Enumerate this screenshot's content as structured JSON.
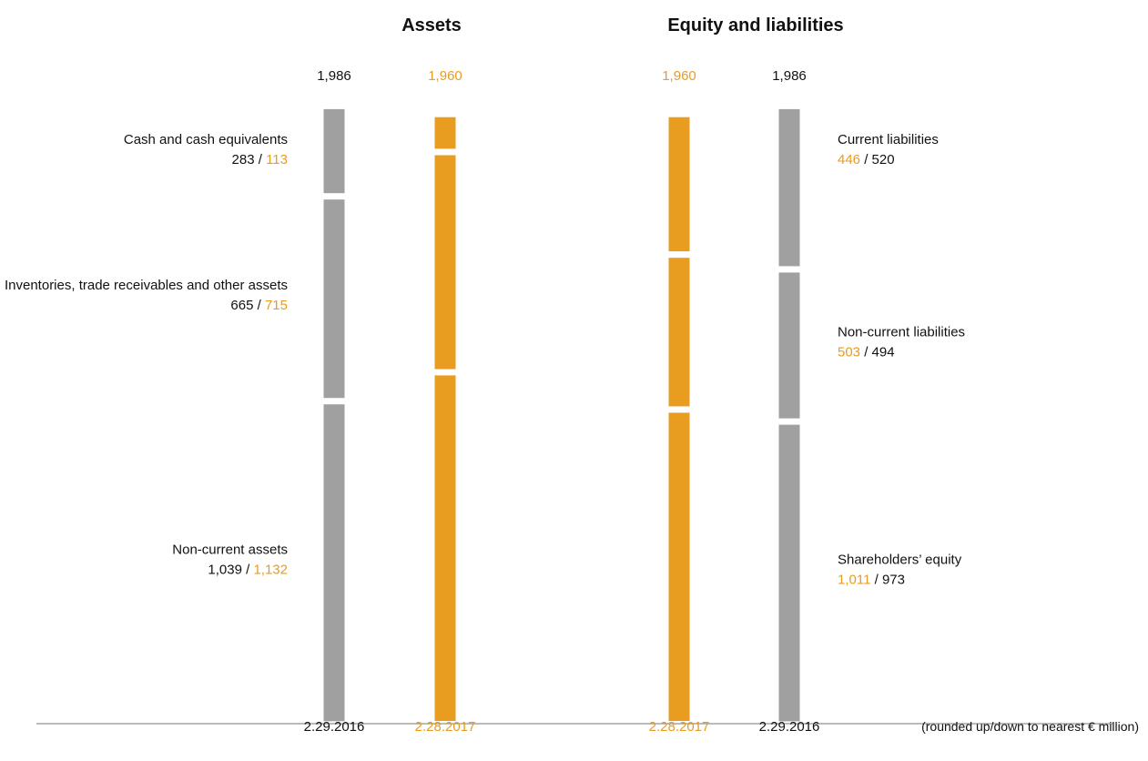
{
  "colors": {
    "previous": "#a0a0a0",
    "current": "#e89c20",
    "text": "#111111",
    "axis": "#777777"
  },
  "chart_data": {
    "type": "bar",
    "stacked": true,
    "unit_note": "(rounded up/down to nearest € million)",
    "panels": [
      {
        "title": "Assets",
        "columns": [
          {
            "date": "2.29.2016",
            "total_label": "1,986",
            "total": 1986,
            "period": "previous"
          },
          {
            "date": "2.28.2017",
            "total_label": "1,960",
            "total": 1960,
            "period": "current"
          }
        ],
        "segments": [
          {
            "name": "Cash and cash equivalents",
            "previous": 283,
            "current": 113,
            "previous_label": "283",
            "current_label": "113"
          },
          {
            "name": "Inventories, trade receivables and other assets",
            "previous": 665,
            "current": 715,
            "previous_label": "665",
            "current_label": "715"
          },
          {
            "name": "Non-current assets",
            "previous": 1039,
            "current": 1132,
            "previous_label": "1,039",
            "current_label": "1,132"
          }
        ]
      },
      {
        "title": "Equity and liabilities",
        "columns": [
          {
            "date": "2.28.2017",
            "total_label": "1,960",
            "total": 1960,
            "period": "current"
          },
          {
            "date": "2.29.2016",
            "total_label": "1,986",
            "total": 1986,
            "period": "previous"
          }
        ],
        "segments": [
          {
            "name": "Current liabilities",
            "previous": 520,
            "current": 446,
            "previous_label": "520",
            "current_label": "446"
          },
          {
            "name": "Non-current liabilities",
            "previous": 494,
            "current": 503,
            "previous_label": "494",
            "current_label": "503"
          },
          {
            "name": "Shareholders’ equity",
            "previous": 973,
            "current": 1011,
            "previous_label": "973",
            "current_label": "1,011"
          }
        ]
      }
    ]
  }
}
